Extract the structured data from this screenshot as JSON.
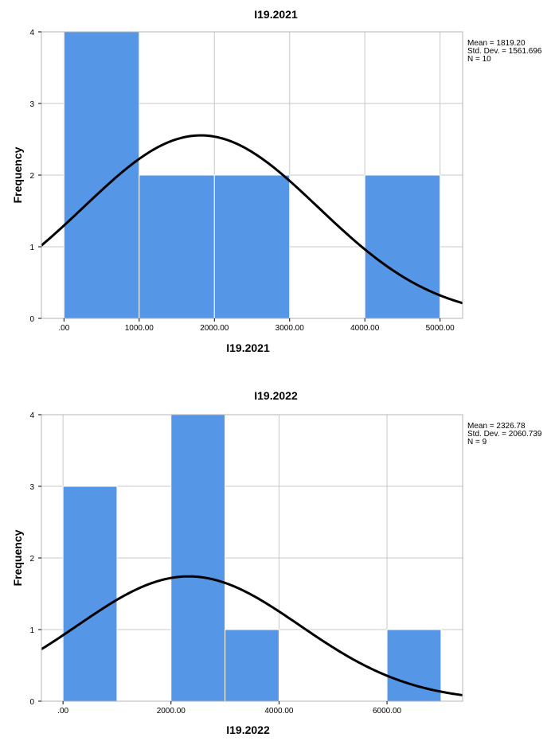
{
  "chart_data": [
    {
      "type": "histogram",
      "title": "I19.2021",
      "xlabel": "I19.2021",
      "ylabel": "Frequency",
      "bins": [
        {
          "start": 0,
          "end": 1000,
          "count": 4
        },
        {
          "start": 1000,
          "end": 2000,
          "count": 2
        },
        {
          "start": 2000,
          "end": 3000,
          "count": 2
        },
        {
          "start": 3000,
          "end": 4000,
          "count": 0
        },
        {
          "start": 4000,
          "end": 5000,
          "count": 2
        }
      ],
      "xlim": [
        -300,
        5300
      ],
      "ylim": [
        0,
        4
      ],
      "x_ticks": [
        0,
        1000,
        2000,
        3000,
        4000,
        5000
      ],
      "x_tick_labels": [
        ".00",
        "1000.00",
        "2000.00",
        "3000.00",
        "4000.00",
        "5000.00"
      ],
      "y_ticks": [
        0,
        1,
        2,
        3,
        4
      ],
      "y_tick_labels": [
        "0",
        "1",
        "2",
        "3",
        "4"
      ],
      "normal_curve": {
        "mean": 1819.2,
        "sd": 1561.696,
        "n": 10,
        "bin_width": 1000
      },
      "stats": [
        "Mean = 1819.20",
        "Std. Dev. = 1561.696",
        "N = 10"
      ],
      "grid": true,
      "bar_color": "#5596e6"
    },
    {
      "type": "histogram",
      "title": "I19.2022",
      "xlabel": "I19.2022",
      "ylabel": "Frequency",
      "bins": [
        {
          "start": 0,
          "end": 1000,
          "count": 3
        },
        {
          "start": 1000,
          "end": 2000,
          "count": 0
        },
        {
          "start": 2000,
          "end": 3000,
          "count": 4
        },
        {
          "start": 3000,
          "end": 4000,
          "count": 1
        },
        {
          "start": 4000,
          "end": 5000,
          "count": 0
        },
        {
          "start": 5000,
          "end": 6000,
          "count": 0
        },
        {
          "start": 6000,
          "end": 7000,
          "count": 1
        }
      ],
      "xlim": [
        -400,
        7400
      ],
      "ylim": [
        0,
        4
      ],
      "x_ticks": [
        0,
        2000,
        4000,
        6000
      ],
      "x_tick_labels": [
        ".00",
        "2000.00",
        "4000.00",
        "6000.00"
      ],
      "y_ticks": [
        0,
        1,
        2,
        3,
        4
      ],
      "y_tick_labels": [
        "0",
        "1",
        "2",
        "3",
        "4"
      ],
      "normal_curve": {
        "mean": 2326.78,
        "sd": 2060.739,
        "n": 9,
        "bin_width": 1000
      },
      "stats": [
        "Mean = 2326.78",
        "Std. Dev. = 2060.739",
        "N = 9"
      ],
      "grid": true,
      "bar_color": "#5596e6"
    }
  ]
}
